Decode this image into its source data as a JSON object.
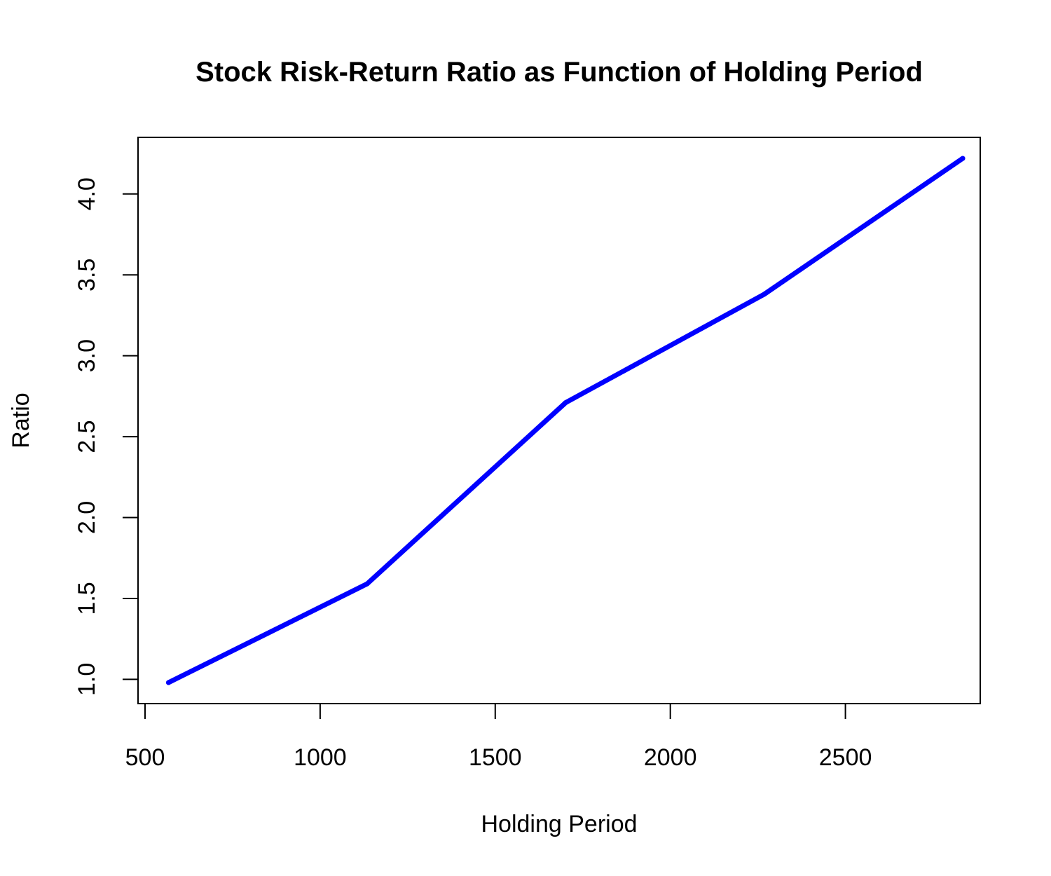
{
  "chart_data": {
    "type": "line",
    "title": "Stock Risk-Return Ratio as Function of Holding Period",
    "xlabel": "Holding Period",
    "ylabel": "Ratio",
    "x": [
      567,
      1134,
      1701,
      2268,
      2835
    ],
    "series": [
      {
        "name": "Ratio",
        "color": "#0000ff",
        "values": [
          0.98,
          1.59,
          2.71,
          3.38,
          4.22
        ]
      }
    ],
    "xlim": [
      480,
      2885
    ],
    "ylim": [
      0.85,
      4.35
    ],
    "xticks": [
      500,
      1000,
      1500,
      2000,
      2500
    ],
    "xtick_labels": [
      "500",
      "1000",
      "1500",
      "2000",
      "2500"
    ],
    "yticks": [
      1.0,
      1.5,
      2.0,
      2.5,
      3.0,
      3.5,
      4.0
    ],
    "ytick_labels": [
      "1.0",
      "1.5",
      "2.0",
      "2.5",
      "3.0",
      "3.5",
      "4.0"
    ],
    "grid": false,
    "legend": "none"
  }
}
